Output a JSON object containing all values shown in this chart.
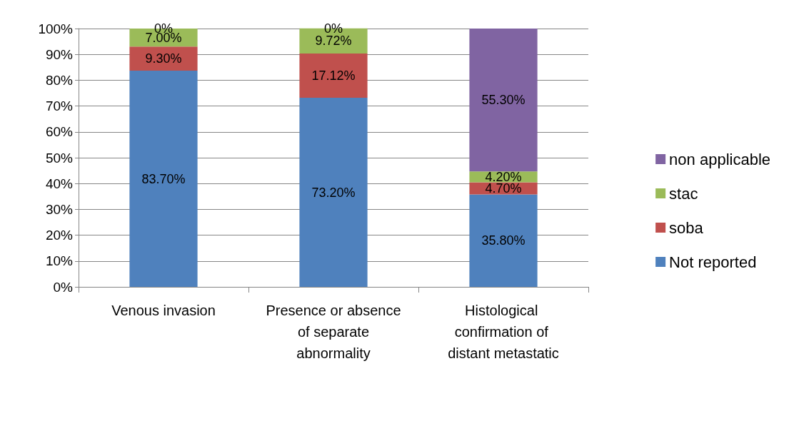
{
  "chart_data": {
    "type": "bar",
    "stacked": true,
    "categories": [
      "Venous invasion",
      "Presence or absence of separate abnormality",
      "Histological confirmation of distant metastatic"
    ],
    "series": [
      {
        "name": "Not reported",
        "color": "#4f81bd",
        "values": [
          83.7,
          73.2,
          35.8
        ],
        "value_labels": [
          "83.70%",
          "73.20%",
          "35.80%"
        ]
      },
      {
        "name": "soba",
        "color": "#c0504d",
        "values": [
          9.3,
          17.12,
          4.7
        ],
        "value_labels": [
          "9.30%",
          "17.12%",
          "4.70%"
        ]
      },
      {
        "name": "stac",
        "color": "#9bbb59",
        "values": [
          7.0,
          9.72,
          4.2
        ],
        "value_labels": [
          "7.00%",
          "9.72%",
          "4.20%"
        ]
      },
      {
        "name": "non applicable",
        "color": "#8064a2",
        "values": [
          0,
          0,
          55.3
        ],
        "value_labels": [
          "0%",
          "0%",
          "55.30%"
        ]
      }
    ],
    "ylim": [
      0,
      100
    ],
    "yticks": [
      {
        "value": 0,
        "label": "0%"
      },
      {
        "value": 10,
        "label": "10%"
      },
      {
        "value": 20,
        "label": "20%"
      },
      {
        "value": 30,
        "label": "30%"
      },
      {
        "value": 40,
        "label": "40%"
      },
      {
        "value": 50,
        "label": "50%"
      },
      {
        "value": 60,
        "label": "60%"
      },
      {
        "value": 70,
        "label": "70%"
      },
      {
        "value": 80,
        "label": "80%"
      },
      {
        "value": 90,
        "label": "90%"
      },
      {
        "value": 100,
        "label": "100%"
      }
    ],
    "grid": "y",
    "legend": "right"
  }
}
